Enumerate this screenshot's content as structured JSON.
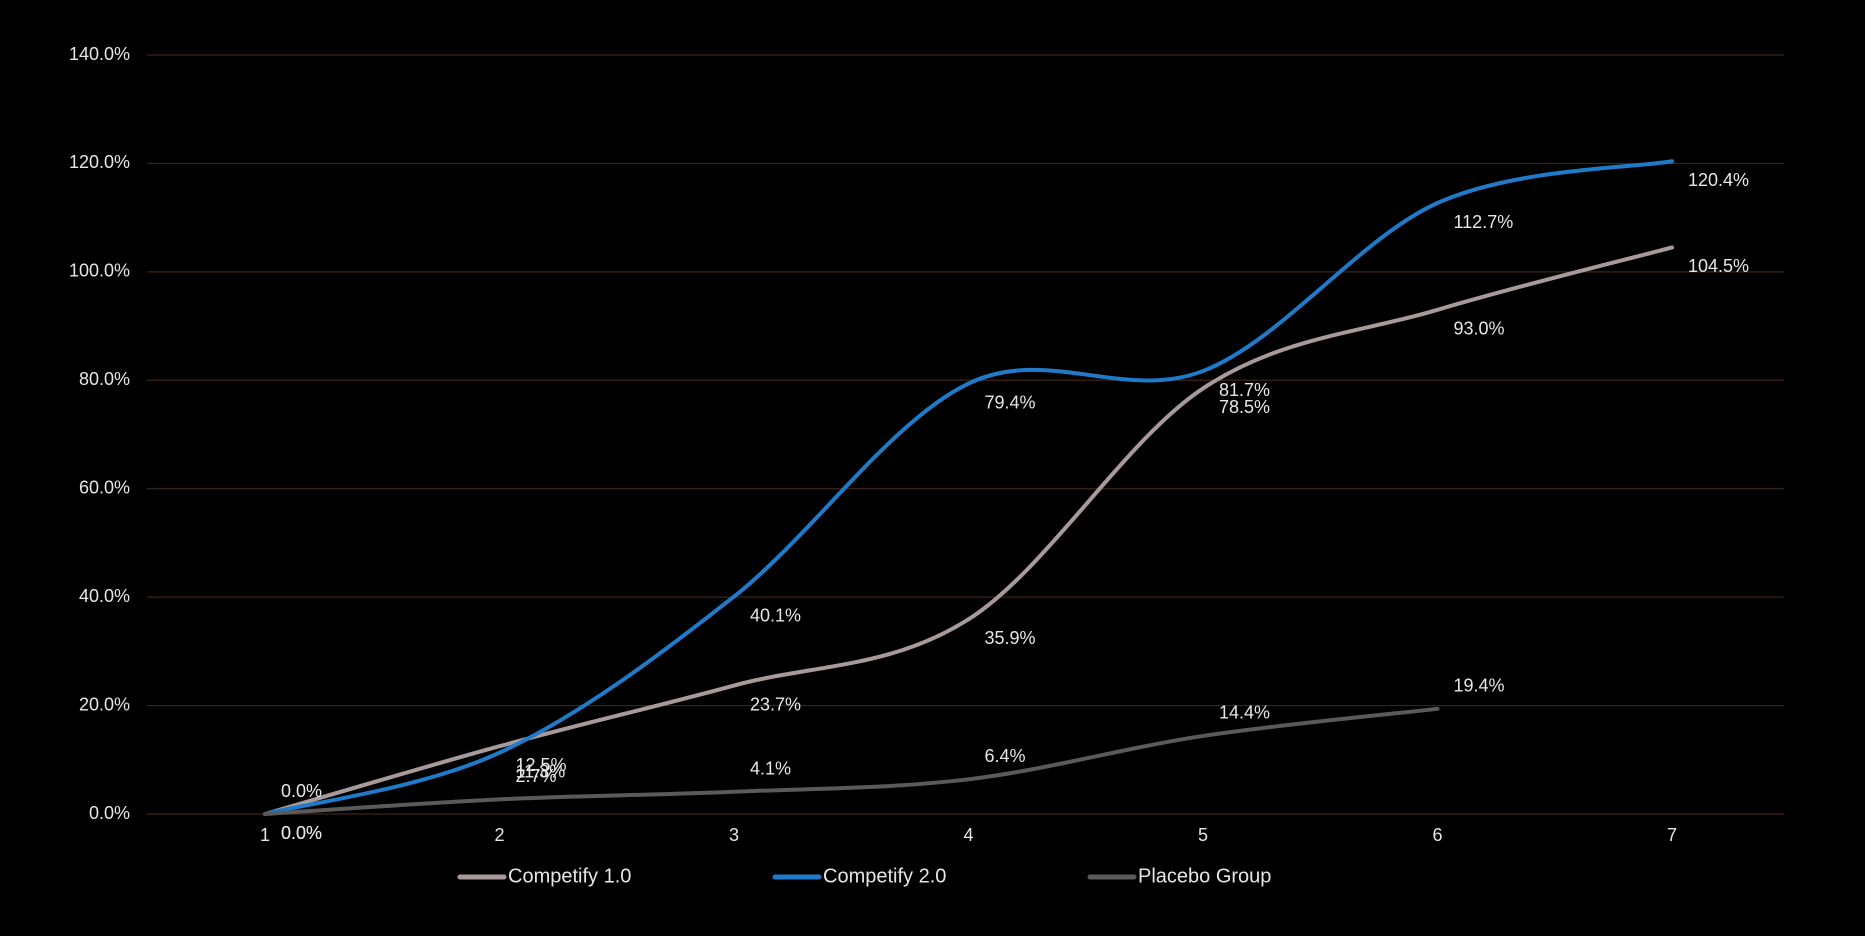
{
  "chart_data": {
    "type": "line",
    "categories": [
      "1",
      "2",
      "3",
      "4",
      "5",
      "6",
      "7"
    ],
    "series": [
      {
        "name": "Competify 1.0",
        "color": "#a89a9a",
        "values": [
          0.0,
          12.5,
          23.7,
          35.9,
          78.5,
          93.0,
          104.5
        ],
        "value_labels": [
          "0.0%",
          "12.5%",
          "23.7%",
          "35.9%",
          "78.5%",
          "93.0%",
          "104.5%"
        ]
      },
      {
        "name": "Competify 2.0",
        "color": "#1f7bc9",
        "values": [
          0.0,
          11.3,
          40.1,
          79.4,
          81.7,
          112.7,
          120.4
        ],
        "value_labels": [
          "0.0%",
          "11.3%",
          "40.1%",
          "79.4%",
          "81.7%",
          "112.7%",
          "120.4%"
        ]
      },
      {
        "name": "Placebo Group",
        "color": "#5a5a5a",
        "values": [
          0.0,
          2.7,
          4.1,
          6.4,
          14.4,
          19.4,
          null
        ],
        "value_labels": [
          "0.0%",
          "2.7%",
          "4.1%",
          "6.4%",
          "14.4%",
          "19.4%",
          null
        ]
      }
    ],
    "ylim": [
      0,
      140
    ],
    "yticks": [
      {
        "value": 0,
        "label": "0.0%"
      },
      {
        "value": 20,
        "label": "20.0%"
      },
      {
        "value": 40,
        "label": "40.0%"
      },
      {
        "value": 60,
        "label": "60.0%"
      },
      {
        "value": 80,
        "label": "80.0%"
      },
      {
        "value": 100,
        "label": "100.0%"
      },
      {
        "value": 120,
        "label": "120.0%"
      },
      {
        "value": 140,
        "label": "140.0%"
      }
    ],
    "grid": true,
    "legend": "bottom"
  }
}
